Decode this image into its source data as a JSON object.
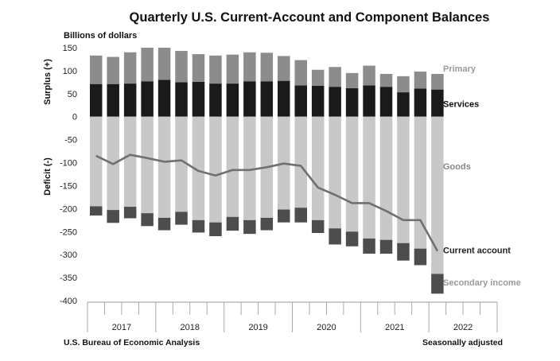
{
  "chart_data": {
    "type": "bar",
    "title": "Quarterly U.S. Current-Account and Component Balances",
    "y_unit_label": "Billions of dollars",
    "ylabel_top": "Surplus (+)",
    "ylabel_bottom": "Deficit (-)",
    "ylim": [
      -400,
      150
    ],
    "yticks": [
      150,
      100,
      50,
      0,
      -50,
      -100,
      -150,
      -200,
      -250,
      -300,
      -350,
      -400
    ],
    "grid": false,
    "years": [
      "2017",
      "2018",
      "2019",
      "2020",
      "2021",
      "2022"
    ],
    "quarters_per_year": 4,
    "series": [
      {
        "name": "Goods",
        "stack": "negative",
        "color": "#c8c8c8",
        "values": [
          -195,
          -203,
          -196,
          -210,
          -220,
          -207,
          -225,
          -230,
          -218,
          -225,
          -220,
          -202,
          -198,
          -225,
          -243,
          -250,
          -265,
          -268,
          -275,
          -287,
          -342
        ]
      },
      {
        "name": "Secondary income",
        "stack": "negative",
        "color": "#4d4d4d",
        "values": [
          -20,
          -28,
          -25,
          -28,
          -27,
          -28,
          -27,
          -30,
          -30,
          -30,
          -27,
          -28,
          -32,
          -28,
          -35,
          -32,
          -33,
          -30,
          -38,
          -36,
          -43
        ]
      },
      {
        "name": "Services",
        "stack": "positive",
        "color": "#1a1a1a",
        "values": [
          71,
          71,
          72,
          77,
          80,
          75,
          76,
          72,
          72,
          77,
          77,
          78,
          68,
          67,
          65,
          62,
          68,
          65,
          53,
          61,
          59
        ]
      },
      {
        "name": "Primary",
        "stack": "positive",
        "color": "#8c8c8c",
        "values": [
          62,
          59,
          68,
          73,
          70,
          68,
          60,
          61,
          63,
          63,
          62,
          54,
          55,
          35,
          43,
          33,
          43,
          28,
          35,
          37,
          34
        ]
      },
      {
        "name": "Current account",
        "type": "line",
        "color": "#707070",
        "values": [
          -85,
          -103,
          -83,
          -90,
          -98,
          -95,
          -118,
          -128,
          -116,
          -116,
          -110,
          -102,
          -107,
          -154,
          -170,
          -188,
          -188,
          -205,
          -225,
          -225,
          -292
        ]
      }
    ],
    "legend_labels": [
      {
        "series": "Primary",
        "text": "Primary",
        "value_ref": 105
      },
      {
        "series": "Services",
        "text": "Services",
        "value_ref": 28
      },
      {
        "series": "Goods",
        "text": "Goods",
        "value_ref": -108
      },
      {
        "series": "Current account",
        "text": "Current account",
        "value_ref": -290
      },
      {
        "series": "Secondary income",
        "text": "Secondary income",
        "value_ref": -360
      }
    ],
    "source": "U.S. Bureau of Economic Analysis",
    "note": "Seasonally adjusted"
  }
}
